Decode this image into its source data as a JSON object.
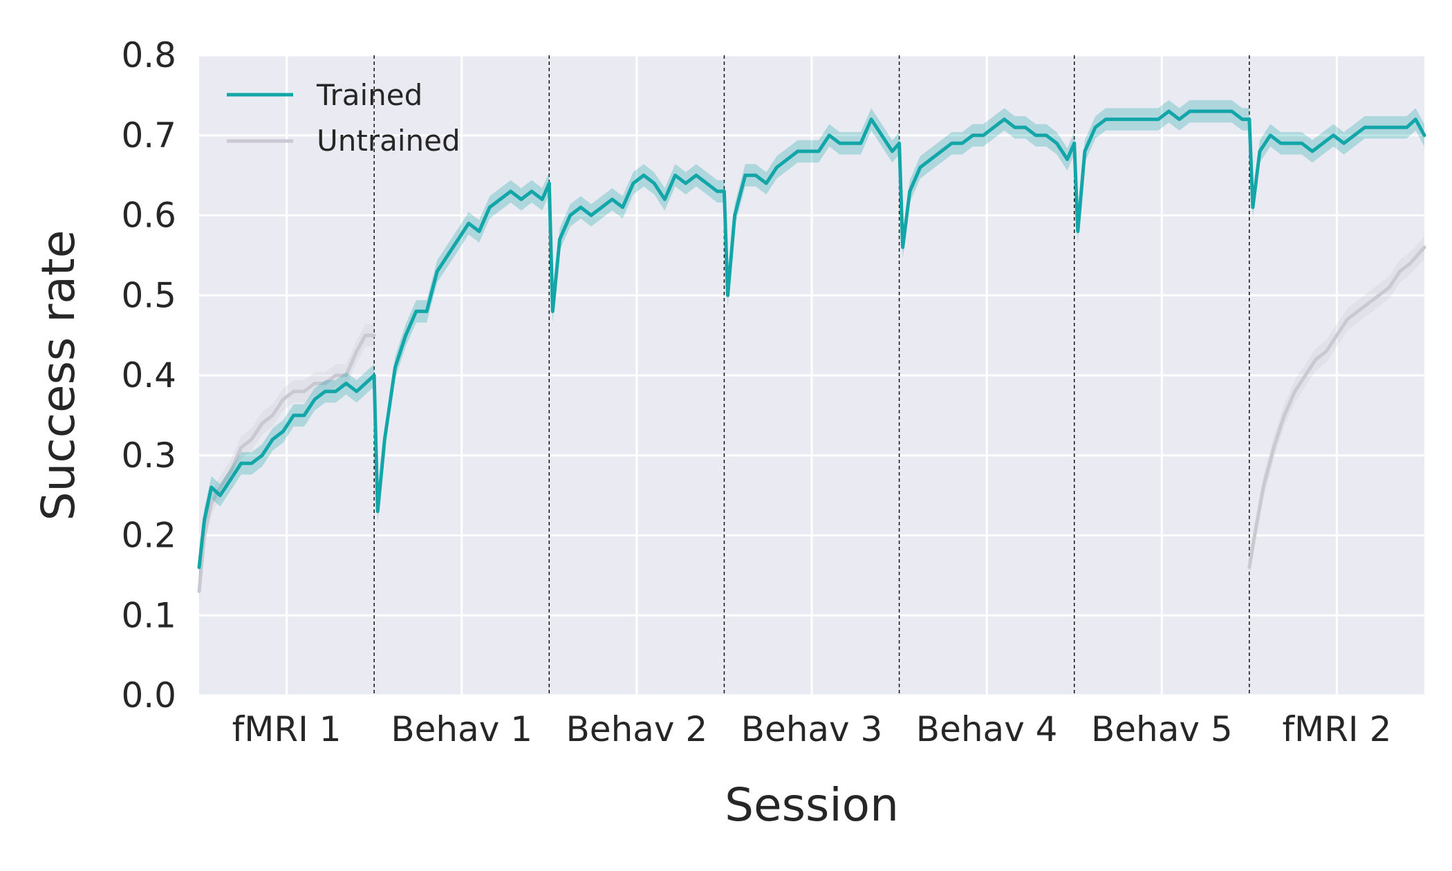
{
  "chart_data": {
    "type": "line",
    "title": "",
    "xlabel": "Session",
    "ylabel": "Success rate",
    "ylim": [
      0,
      0.8
    ],
    "yticks": [
      "0.0",
      "0.1",
      "0.2",
      "0.3",
      "0.4",
      "0.5",
      "0.6",
      "0.7",
      "0.8"
    ],
    "xlim": [
      0,
      7
    ],
    "categories": [
      "fMRI 1",
      "Behav 1",
      "Behav 2",
      "Behav 3",
      "Behav 4",
      "Behav 5",
      "fMRI 2"
    ],
    "session_boundaries": [
      1,
      2,
      3,
      4,
      5,
      6
    ],
    "grid": true,
    "legend_position": "top-left",
    "series": [
      {
        "name": "Trained",
        "color": "#12a6a8",
        "band_color": "#12a6a8",
        "segments": [
          [
            [
              0.0,
              0.16
            ],
            [
              0.03,
              0.22
            ],
            [
              0.07,
              0.26
            ],
            [
              0.12,
              0.25
            ],
            [
              0.18,
              0.27
            ],
            [
              0.24,
              0.29
            ],
            [
              0.3,
              0.29
            ],
            [
              0.36,
              0.3
            ],
            [
              0.42,
              0.32
            ],
            [
              0.48,
              0.33
            ],
            [
              0.54,
              0.35
            ],
            [
              0.6,
              0.35
            ],
            [
              0.66,
              0.37
            ],
            [
              0.72,
              0.38
            ],
            [
              0.78,
              0.38
            ],
            [
              0.84,
              0.39
            ],
            [
              0.9,
              0.38
            ],
            [
              0.95,
              0.39
            ],
            [
              1.0,
              0.4
            ]
          ],
          [
            [
              1.0,
              0.4
            ],
            [
              1.02,
              0.23
            ],
            [
              1.06,
              0.32
            ],
            [
              1.12,
              0.41
            ],
            [
              1.18,
              0.45
            ],
            [
              1.24,
              0.48
            ],
            [
              1.3,
              0.48
            ],
            [
              1.36,
              0.53
            ],
            [
              1.42,
              0.55
            ],
            [
              1.48,
              0.57
            ],
            [
              1.54,
              0.59
            ],
            [
              1.6,
              0.58
            ],
            [
              1.66,
              0.61
            ],
            [
              1.72,
              0.62
            ],
            [
              1.78,
              0.63
            ],
            [
              1.84,
              0.62
            ],
            [
              1.9,
              0.63
            ],
            [
              1.96,
              0.62
            ],
            [
              2.0,
              0.64
            ]
          ],
          [
            [
              2.0,
              0.64
            ],
            [
              2.02,
              0.48
            ],
            [
              2.06,
              0.57
            ],
            [
              2.12,
              0.6
            ],
            [
              2.18,
              0.61
            ],
            [
              2.24,
              0.6
            ],
            [
              2.3,
              0.61
            ],
            [
              2.36,
              0.62
            ],
            [
              2.42,
              0.61
            ],
            [
              2.48,
              0.64
            ],
            [
              2.54,
              0.65
            ],
            [
              2.6,
              0.64
            ],
            [
              2.66,
              0.62
            ],
            [
              2.72,
              0.65
            ],
            [
              2.78,
              0.64
            ],
            [
              2.84,
              0.65
            ],
            [
              2.9,
              0.64
            ],
            [
              2.96,
              0.63
            ],
            [
              3.0,
              0.63
            ]
          ],
          [
            [
              3.0,
              0.63
            ],
            [
              3.02,
              0.5
            ],
            [
              3.06,
              0.6
            ],
            [
              3.12,
              0.65
            ],
            [
              3.18,
              0.65
            ],
            [
              3.24,
              0.64
            ],
            [
              3.3,
              0.66
            ],
            [
              3.36,
              0.67
            ],
            [
              3.42,
              0.68
            ],
            [
              3.48,
              0.68
            ],
            [
              3.54,
              0.68
            ],
            [
              3.6,
              0.7
            ],
            [
              3.66,
              0.69
            ],
            [
              3.72,
              0.69
            ],
            [
              3.78,
              0.69
            ],
            [
              3.84,
              0.72
            ],
            [
              3.9,
              0.7
            ],
            [
              3.96,
              0.68
            ],
            [
              4.0,
              0.69
            ]
          ],
          [
            [
              4.0,
              0.69
            ],
            [
              4.02,
              0.56
            ],
            [
              4.06,
              0.63
            ],
            [
              4.12,
              0.66
            ],
            [
              4.18,
              0.67
            ],
            [
              4.24,
              0.68
            ],
            [
              4.3,
              0.69
            ],
            [
              4.36,
              0.69
            ],
            [
              4.42,
              0.7
            ],
            [
              4.48,
              0.7
            ],
            [
              4.54,
              0.71
            ],
            [
              4.6,
              0.72
            ],
            [
              4.66,
              0.71
            ],
            [
              4.72,
              0.71
            ],
            [
              4.78,
              0.7
            ],
            [
              4.84,
              0.7
            ],
            [
              4.9,
              0.69
            ],
            [
              4.96,
              0.67
            ],
            [
              5.0,
              0.69
            ]
          ],
          [
            [
              5.0,
              0.69
            ],
            [
              5.02,
              0.58
            ],
            [
              5.06,
              0.68
            ],
            [
              5.12,
              0.71
            ],
            [
              5.18,
              0.72
            ],
            [
              5.24,
              0.72
            ],
            [
              5.3,
              0.72
            ],
            [
              5.36,
              0.72
            ],
            [
              5.42,
              0.72
            ],
            [
              5.48,
              0.72
            ],
            [
              5.54,
              0.73
            ],
            [
              5.6,
              0.72
            ],
            [
              5.66,
              0.73
            ],
            [
              5.72,
              0.73
            ],
            [
              5.78,
              0.73
            ],
            [
              5.84,
              0.73
            ],
            [
              5.9,
              0.73
            ],
            [
              5.96,
              0.72
            ],
            [
              6.0,
              0.72
            ]
          ],
          [
            [
              6.0,
              0.72
            ],
            [
              6.02,
              0.61
            ],
            [
              6.06,
              0.68
            ],
            [
              6.12,
              0.7
            ],
            [
              6.18,
              0.69
            ],
            [
              6.24,
              0.69
            ],
            [
              6.3,
              0.69
            ],
            [
              6.36,
              0.68
            ],
            [
              6.42,
              0.69
            ],
            [
              6.48,
              0.7
            ],
            [
              6.54,
              0.69
            ],
            [
              6.6,
              0.7
            ],
            [
              6.66,
              0.71
            ],
            [
              6.72,
              0.71
            ],
            [
              6.78,
              0.71
            ],
            [
              6.84,
              0.71
            ],
            [
              6.9,
              0.71
            ],
            [
              6.95,
              0.72
            ],
            [
              7.0,
              0.7
            ]
          ]
        ]
      },
      {
        "name": "Untrained",
        "color": "#c9c8d3",
        "band_color": "#c9c8d3",
        "segments": [
          [
            [
              0.0,
              0.13
            ],
            [
              0.03,
              0.2
            ],
            [
              0.07,
              0.24
            ],
            [
              0.12,
              0.26
            ],
            [
              0.18,
              0.28
            ],
            [
              0.24,
              0.31
            ],
            [
              0.3,
              0.32
            ],
            [
              0.36,
              0.34
            ],
            [
              0.42,
              0.35
            ],
            [
              0.48,
              0.37
            ],
            [
              0.54,
              0.38
            ],
            [
              0.6,
              0.38
            ],
            [
              0.66,
              0.39
            ],
            [
              0.72,
              0.39
            ],
            [
              0.78,
              0.4
            ],
            [
              0.84,
              0.4
            ],
            [
              0.9,
              0.43
            ],
            [
              0.95,
              0.45
            ],
            [
              1.0,
              0.45
            ]
          ],
          [
            [
              6.0,
              0.16
            ],
            [
              6.03,
              0.2
            ],
            [
              6.08,
              0.26
            ],
            [
              6.14,
              0.31
            ],
            [
              6.2,
              0.35
            ],
            [
              6.26,
              0.38
            ],
            [
              6.32,
              0.4
            ],
            [
              6.38,
              0.42
            ],
            [
              6.44,
              0.43
            ],
            [
              6.5,
              0.45
            ],
            [
              6.56,
              0.47
            ],
            [
              6.62,
              0.48
            ],
            [
              6.68,
              0.49
            ],
            [
              6.74,
              0.5
            ],
            [
              6.8,
              0.51
            ],
            [
              6.86,
              0.53
            ],
            [
              6.92,
              0.54
            ],
            [
              6.96,
              0.55
            ],
            [
              7.0,
              0.56
            ]
          ]
        ]
      }
    ]
  }
}
